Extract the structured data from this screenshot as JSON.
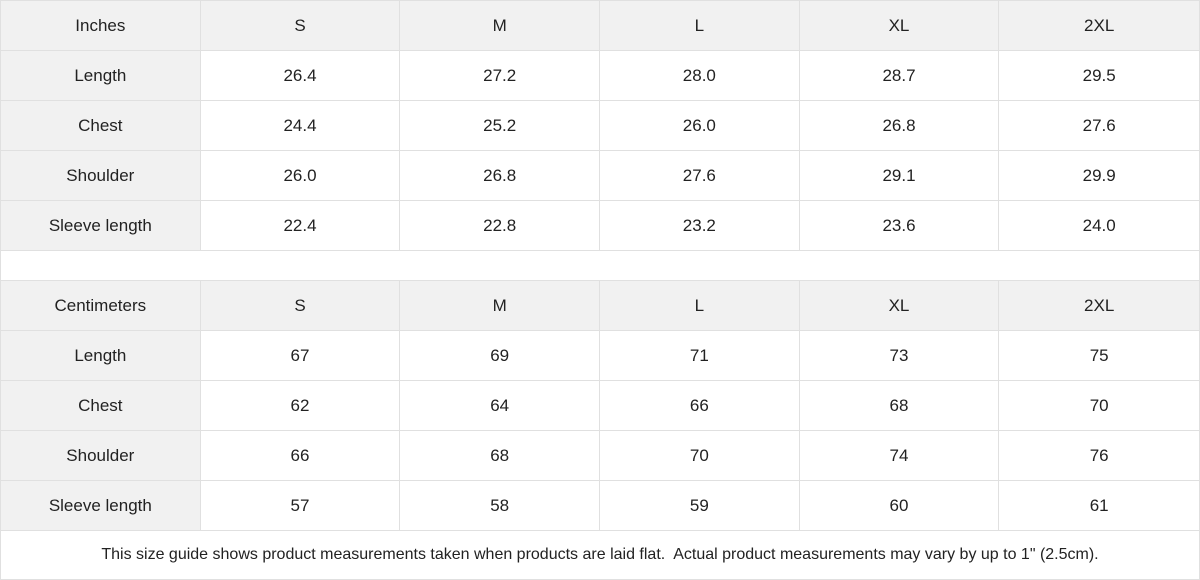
{
  "colors": {
    "header_bg": "#f1f1f1",
    "cell_bg": "#ffffff",
    "border": "#e0e0e0",
    "text": "#222222"
  },
  "tables": [
    {
      "unit_label": "Inches",
      "sizes": [
        "S",
        "M",
        "L",
        "XL",
        "2XL"
      ],
      "rows": [
        {
          "label": "Length",
          "values": [
            "26.4",
            "27.2",
            "28.0",
            "28.7",
            "29.5"
          ]
        },
        {
          "label": "Chest",
          "values": [
            "24.4",
            "25.2",
            "26.0",
            "26.8",
            "27.6"
          ]
        },
        {
          "label": "Shoulder",
          "values": [
            "26.0",
            "26.8",
            "27.6",
            "29.1",
            "29.9"
          ]
        },
        {
          "label": "Sleeve length",
          "values": [
            "22.4",
            "22.8",
            "23.2",
            "23.6",
            "24.0"
          ]
        }
      ]
    },
    {
      "unit_label": "Centimeters",
      "sizes": [
        "S",
        "M",
        "L",
        "XL",
        "2XL"
      ],
      "rows": [
        {
          "label": "Length",
          "values": [
            "67",
            "69",
            "71",
            "73",
            "75"
          ]
        },
        {
          "label": "Chest",
          "values": [
            "62",
            "64",
            "66",
            "68",
            "70"
          ]
        },
        {
          "label": "Shoulder",
          "values": [
            "66",
            "68",
            "70",
            "74",
            "76"
          ]
        },
        {
          "label": "Sleeve length",
          "values": [
            "57",
            "58",
            "59",
            "60",
            "61"
          ]
        }
      ]
    }
  ],
  "footer": {
    "note": "This size guide shows product measurements taken when products are laid flat.  Actual product measurements may vary by up to 1\" (2.5cm)."
  },
  "chart_data": [
    {
      "type": "table",
      "title": "Inches",
      "columns": [
        "Inches",
        "S",
        "M",
        "L",
        "XL",
        "2XL"
      ],
      "rows": [
        [
          "Length",
          26.4,
          27.2,
          28.0,
          28.7,
          29.5
        ],
        [
          "Chest",
          24.4,
          25.2,
          26.0,
          26.8,
          27.6
        ],
        [
          "Shoulder",
          26.0,
          26.8,
          27.6,
          29.1,
          29.9
        ],
        [
          "Sleeve length",
          22.4,
          22.8,
          23.2,
          23.6,
          24.0
        ]
      ]
    },
    {
      "type": "table",
      "title": "Centimeters",
      "columns": [
        "Centimeters",
        "S",
        "M",
        "L",
        "XL",
        "2XL"
      ],
      "rows": [
        [
          "Length",
          67,
          69,
          71,
          73,
          75
        ],
        [
          "Chest",
          62,
          64,
          66,
          68,
          70
        ],
        [
          "Shoulder",
          66,
          68,
          70,
          74,
          76
        ],
        [
          "Sleeve length",
          57,
          58,
          59,
          60,
          61
        ]
      ]
    }
  ]
}
